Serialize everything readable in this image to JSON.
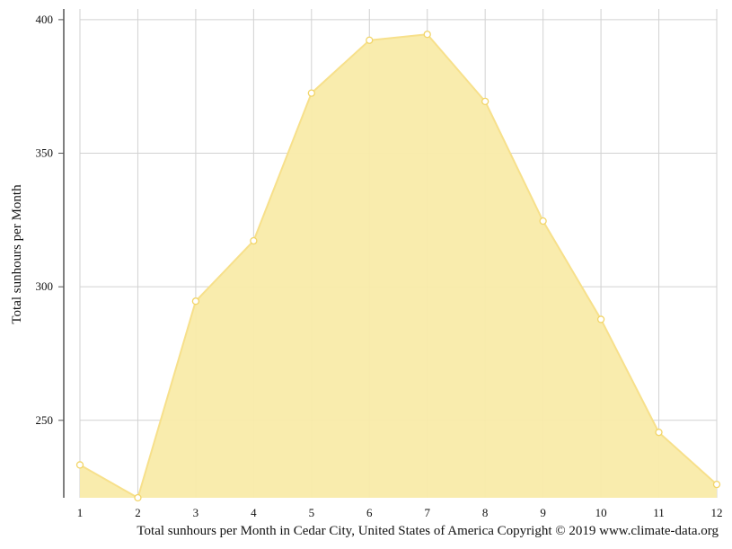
{
  "chart_data": {
    "type": "area",
    "x": [
      1,
      2,
      3,
      4,
      5,
      6,
      7,
      8,
      9,
      10,
      11,
      12
    ],
    "values": [
      233.3,
      221.0,
      294.6,
      317.2,
      372.5,
      392.3,
      394.5,
      369.4,
      324.6,
      287.8,
      245.5,
      226.0
    ],
    "xlabel": "",
    "ylabel": "Total sunhours per Month",
    "ylim": [
      221,
      404
    ],
    "yticks": [
      250,
      300,
      350,
      400
    ],
    "xlim": [
      1,
      12
    ],
    "grid": true,
    "legend": "none",
    "colors": {
      "fill": "#f9eba9",
      "line": "#f7e08b",
      "marker": "#f2d569",
      "grid": "#d2d2d2",
      "axis": "#555555"
    }
  },
  "caption": "Total sunhours per Month in Cedar City, United States of America Copyright © 2019 www.climate-data.org"
}
